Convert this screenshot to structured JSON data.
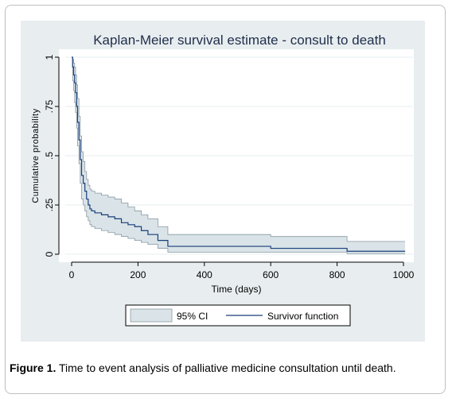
{
  "caption": {
    "label": "Figure 1.",
    "text": "Time to event analysis of palliative medicine consultation until death."
  },
  "chart_data": {
    "type": "line",
    "title": "Kaplan-Meier survival estimate - consult to death",
    "xlabel": "Time (days)",
    "ylabel": "Cumulative probability",
    "xlim": [
      0,
      1000
    ],
    "ylim": [
      0,
      1
    ],
    "xticks": [
      0,
      200,
      400,
      600,
      800,
      1000
    ],
    "xtick_labels": [
      "0",
      "200",
      "400",
      "600",
      "800",
      "1000"
    ],
    "yticks": [
      0,
      0.25,
      0.5,
      0.75,
      1
    ],
    "ytick_labels": [
      "0",
      ".25",
      ".5",
      ".75",
      "1"
    ],
    "grid": "horizontal",
    "legend": {
      "position": "bottom",
      "entries": [
        "95% CI",
        "Survivor function"
      ]
    },
    "colors": {
      "line": "#1a3f7a",
      "band": "#d9e3e8",
      "band_edge": "#8a9aa3",
      "panel": "#e8eef0"
    },
    "series": [
      {
        "name": "Survivor function",
        "kind": "step",
        "x": [
          0,
          3,
          6,
          9,
          12,
          15,
          18,
          22,
          26,
          30,
          35,
          40,
          45,
          50,
          55,
          60,
          70,
          90,
          110,
          130,
          150,
          170,
          190,
          210,
          230,
          260,
          290,
          600,
          830,
          1005
        ],
        "y": [
          1.0,
          0.95,
          0.91,
          0.87,
          0.82,
          0.75,
          0.67,
          0.58,
          0.48,
          0.4,
          0.36,
          0.32,
          0.28,
          0.25,
          0.23,
          0.22,
          0.21,
          0.2,
          0.19,
          0.18,
          0.16,
          0.15,
          0.14,
          0.12,
          0.1,
          0.07,
          0.04,
          0.03,
          0.015,
          0.015
        ]
      },
      {
        "name": "95% CI",
        "kind": "band",
        "x": [
          0,
          3,
          6,
          9,
          12,
          15,
          18,
          22,
          26,
          30,
          35,
          40,
          45,
          50,
          55,
          60,
          70,
          90,
          110,
          130,
          150,
          170,
          190,
          210,
          230,
          260,
          290,
          600,
          830,
          1005
        ],
        "upper": [
          1.0,
          0.99,
          0.97,
          0.95,
          0.91,
          0.86,
          0.79,
          0.7,
          0.6,
          0.52,
          0.47,
          0.42,
          0.38,
          0.35,
          0.33,
          0.32,
          0.31,
          0.3,
          0.29,
          0.28,
          0.26,
          0.24,
          0.22,
          0.2,
          0.18,
          0.14,
          0.1,
          0.09,
          0.065,
          0.065
        ],
        "lower": [
          1.0,
          0.88,
          0.83,
          0.77,
          0.72,
          0.64,
          0.55,
          0.46,
          0.36,
          0.28,
          0.25,
          0.22,
          0.19,
          0.17,
          0.15,
          0.14,
          0.13,
          0.12,
          0.11,
          0.1,
          0.09,
          0.08,
          0.07,
          0.06,
          0.05,
          0.03,
          0.01,
          0.01,
          0.003,
          0.003
        ]
      }
    ]
  }
}
